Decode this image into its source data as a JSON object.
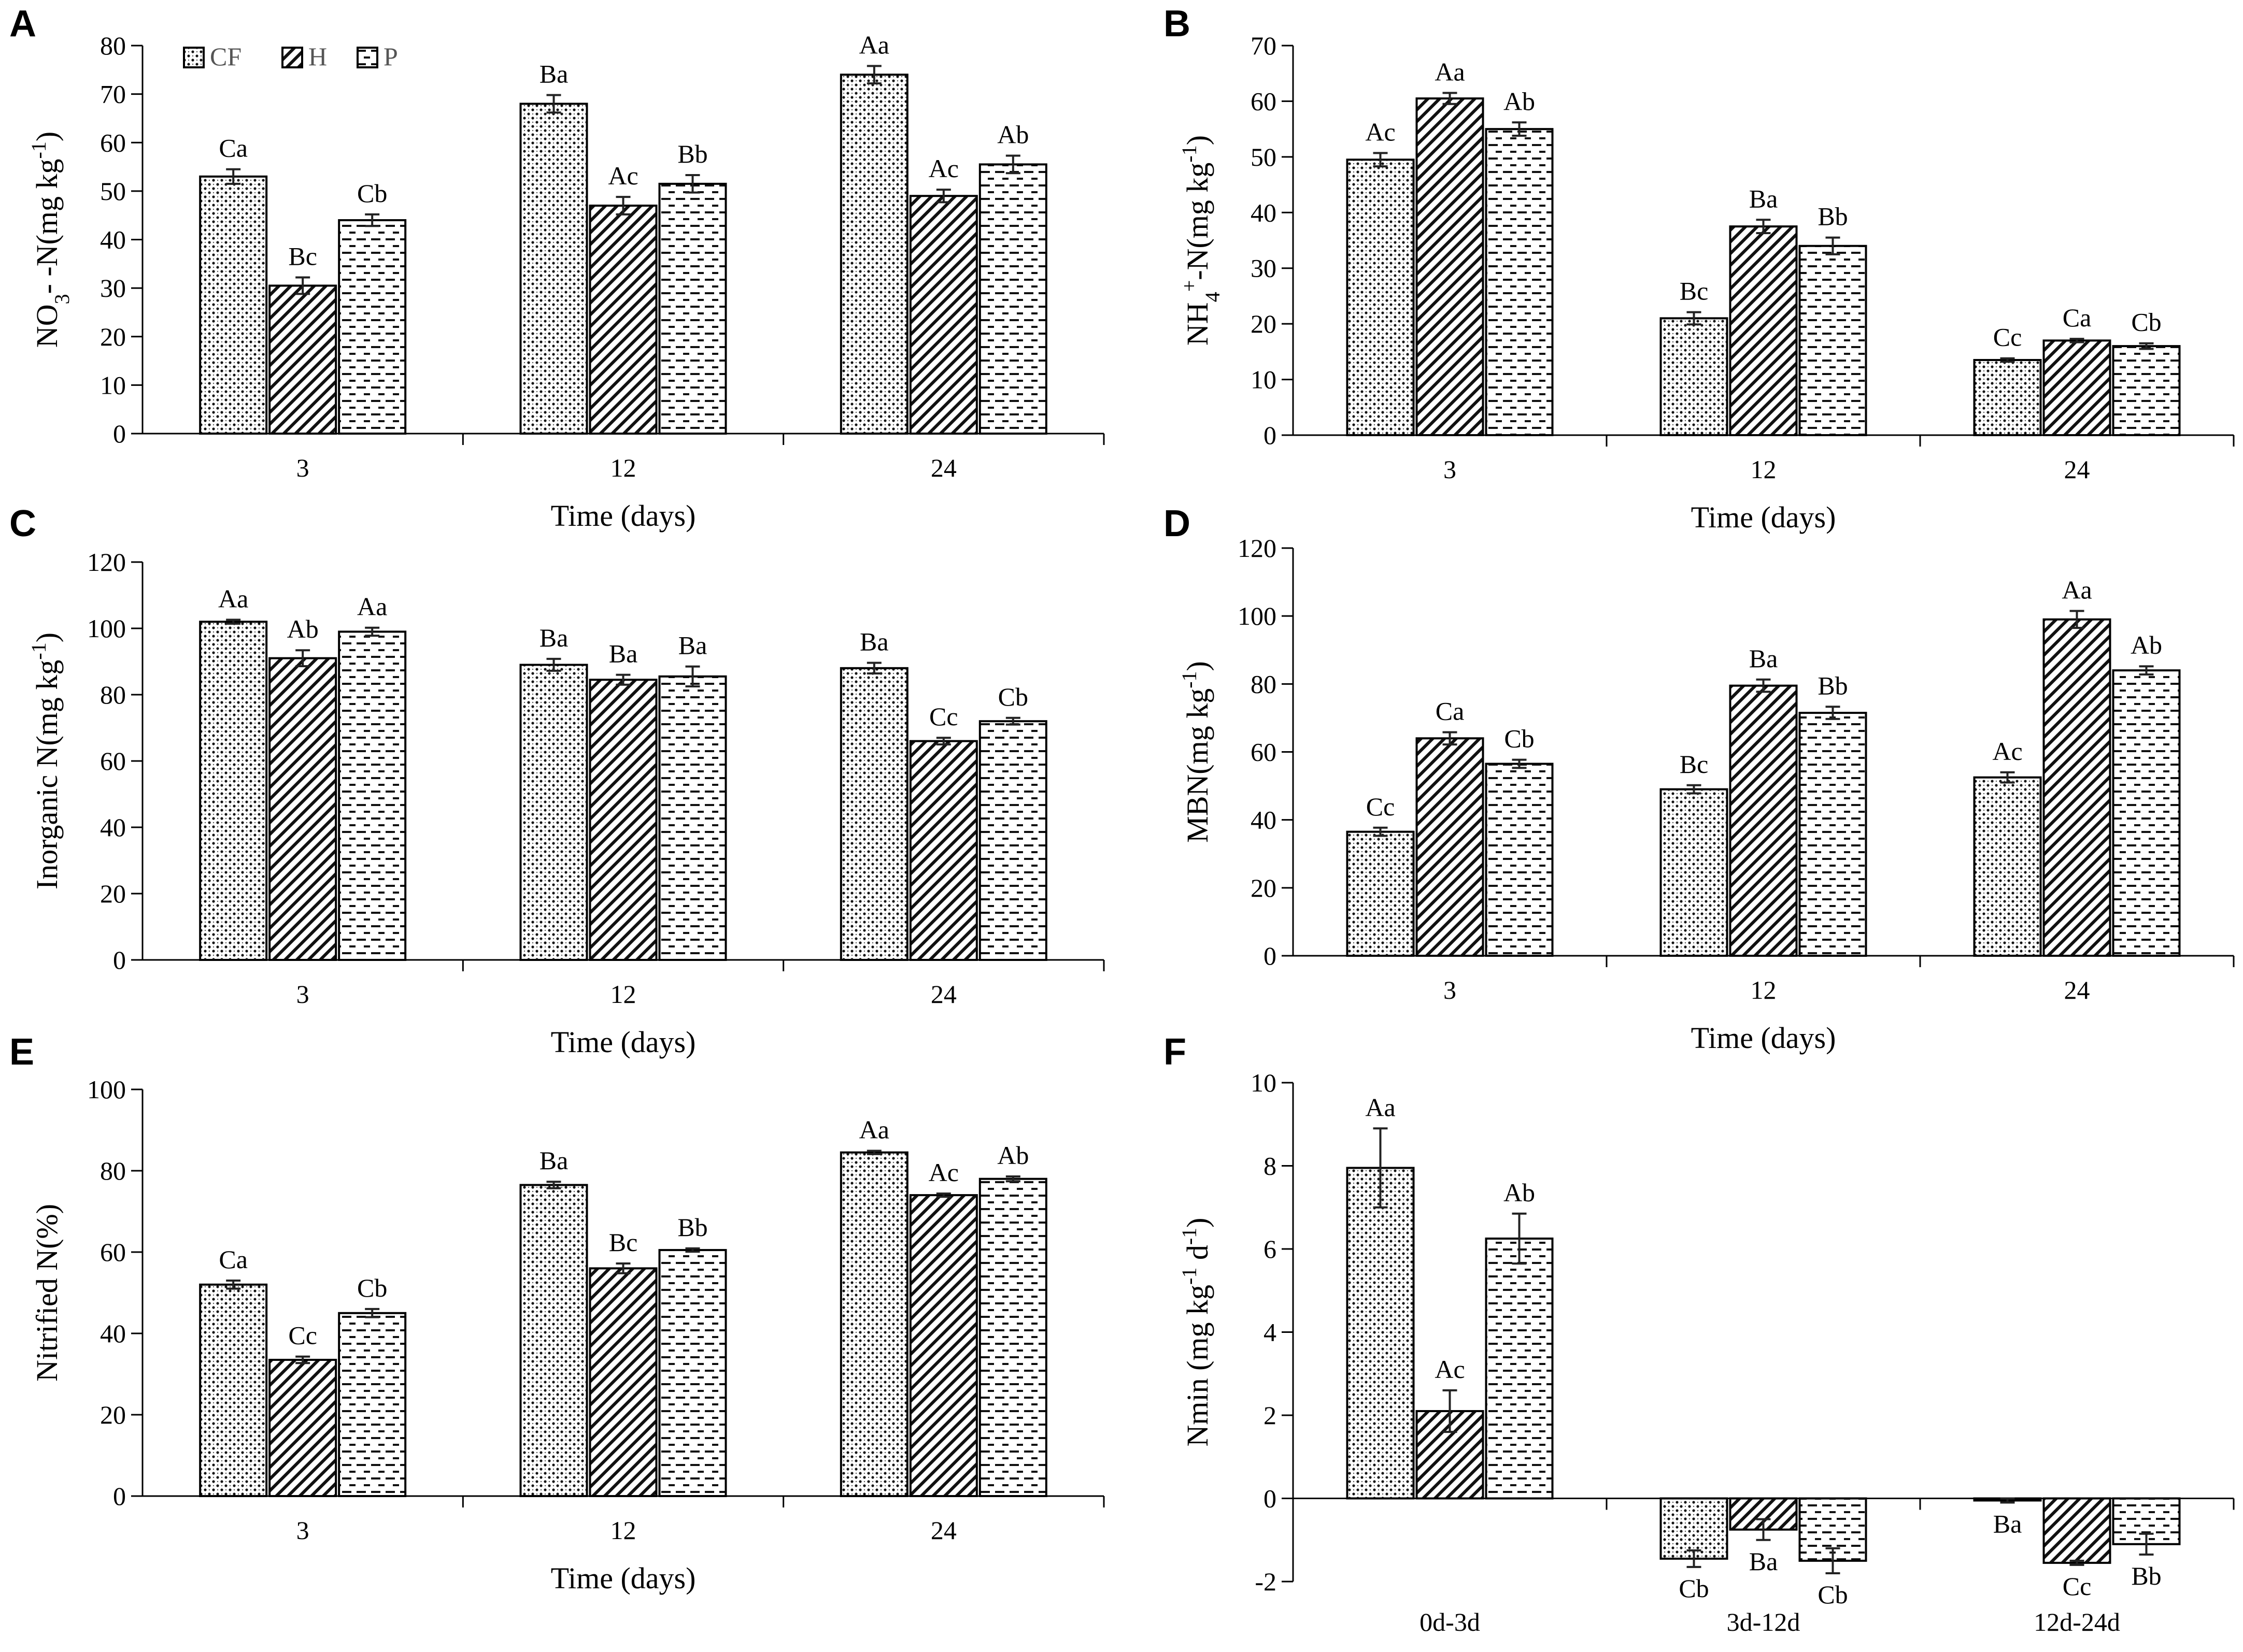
{
  "figure": {
    "legend": [
      {
        "key": "CF",
        "label": "CF"
      },
      {
        "key": "H",
        "label": "H"
      },
      {
        "key": "P",
        "label": "P"
      }
    ]
  },
  "chart_data": [
    {
      "panel": "A",
      "type": "bar",
      "xlabel": "Time (days)",
      "ylabel_parts": [
        [
          "NO",
          ""
        ],
        [
          "3",
          "sub"
        ],
        [
          "- -N(mg kg",
          ""
        ],
        [
          "-1",
          "sup"
        ],
        [
          ")",
          ""
        ]
      ],
      "ylim": [
        0,
        80
      ],
      "yticks": [
        "0",
        "10",
        "20",
        "30",
        "40",
        "50",
        "60",
        "70",
        "80"
      ],
      "categories": [
        "3",
        "12",
        "24"
      ],
      "series": [
        {
          "name": "CF",
          "values": [
            53,
            68,
            74
          ],
          "errors": [
            1.5,
            1.8,
            1.8
          ],
          "labels": [
            "Ca",
            "Ba",
            "Aa"
          ]
        },
        {
          "name": "H",
          "values": [
            30.5,
            47,
            49
          ],
          "errors": [
            1.7,
            1.8,
            1.3
          ],
          "labels": [
            "Bc",
            "Ac",
            "Ac"
          ]
        },
        {
          "name": "P",
          "values": [
            44,
            51.5,
            55.5
          ],
          "errors": [
            1.2,
            1.8,
            1.8
          ],
          "labels": [
            "Cb",
            "Bb",
            "Ab"
          ]
        }
      ]
    },
    {
      "panel": "B",
      "type": "bar",
      "xlabel": "Time (days)",
      "ylabel_parts": [
        [
          "NH",
          ""
        ],
        [
          "4",
          "sub"
        ],
        [
          "+",
          "sup"
        ],
        [
          "-N(mg kg",
          ""
        ],
        [
          "-1",
          "sup"
        ],
        [
          ")",
          ""
        ]
      ],
      "ylim": [
        0,
        70
      ],
      "yticks": [
        "0",
        "10",
        "20",
        "30",
        "40",
        "50",
        "60",
        "70"
      ],
      "categories": [
        "3",
        "12",
        "24"
      ],
      "series": [
        {
          "name": "CF",
          "values": [
            49.5,
            21,
            13.5
          ],
          "errors": [
            1.2,
            1.1,
            0.3
          ],
          "labels": [
            "Ac",
            "Bc",
            "Cc"
          ]
        },
        {
          "name": "H",
          "values": [
            60.5,
            37.5,
            17
          ],
          "errors": [
            1.0,
            1.2,
            0.3
          ],
          "labels": [
            "Aa",
            "Ba",
            "Ca"
          ]
        },
        {
          "name": "P",
          "values": [
            55,
            34,
            16
          ],
          "errors": [
            1.2,
            1.5,
            0.5
          ],
          "labels": [
            "Ab",
            "Bb",
            "Cb"
          ]
        }
      ]
    },
    {
      "panel": "C",
      "type": "bar",
      "xlabel": "Time (days)",
      "ylabel_parts": [
        [
          "Inorganic N(mg kg",
          ""
        ],
        [
          "-1",
          "sup"
        ],
        [
          ")",
          ""
        ]
      ],
      "ylim": [
        0,
        120
      ],
      "yticks": [
        "0",
        "20",
        "40",
        "60",
        "80",
        "100",
        "120"
      ],
      "categories": [
        "3",
        "12",
        "24"
      ],
      "series": [
        {
          "name": "CF",
          "values": [
            102,
            89,
            88
          ],
          "errors": [
            0.6,
            1.8,
            1.6
          ],
          "labels": [
            "Aa",
            "Ba",
            "Ba"
          ]
        },
        {
          "name": "H",
          "values": [
            91,
            84.5,
            66
          ],
          "errors": [
            2.4,
            1.5,
            1.0
          ],
          "labels": [
            "Ab",
            "Ba",
            "Cc"
          ]
        },
        {
          "name": "P",
          "values": [
            99,
            85.5,
            72
          ],
          "errors": [
            1.2,
            3.0,
            1.0
          ],
          "labels": [
            "Aa",
            "Ba",
            "Cb"
          ]
        }
      ]
    },
    {
      "panel": "D",
      "type": "bar",
      "xlabel": "Time (days)",
      "ylabel_parts": [
        [
          "MBN(mg kg",
          ""
        ],
        [
          "-1",
          "sup"
        ],
        [
          ")",
          ""
        ]
      ],
      "ylim": [
        0,
        120
      ],
      "yticks": [
        "0",
        "20",
        "40",
        "60",
        "80",
        "100",
        "120"
      ],
      "categories": [
        "3",
        "12",
        "24"
      ],
      "series": [
        {
          "name": "CF",
          "values": [
            36.5,
            49,
            52.5
          ],
          "errors": [
            1.2,
            1.2,
            1.5
          ],
          "labels": [
            "Cc",
            "Bc",
            "Ac"
          ]
        },
        {
          "name": "H",
          "values": [
            64,
            79.5,
            99
          ],
          "errors": [
            1.8,
            1.8,
            2.5
          ],
          "labels": [
            "Ca",
            "Ba",
            "Aa"
          ]
        },
        {
          "name": "P",
          "values": [
            56.5,
            71.5,
            84
          ],
          "errors": [
            1.2,
            1.8,
            1.2
          ],
          "labels": [
            "Cb",
            "Bb",
            "Ab"
          ]
        }
      ]
    },
    {
      "panel": "E",
      "type": "bar",
      "xlabel": "Time (days)",
      "ylabel_parts": [
        [
          "Nitrified N(%)",
          ""
        ]
      ],
      "ylim": [
        0,
        100
      ],
      "yticks": [
        "0",
        "20",
        "40",
        "60",
        "80",
        "100"
      ],
      "categories": [
        "3",
        "12",
        "24"
      ],
      "series": [
        {
          "name": "CF",
          "values": [
            52,
            76.5,
            84.5
          ],
          "errors": [
            1.0,
            0.8,
            0.4
          ],
          "labels": [
            "Ca",
            "Ba",
            "Aa"
          ]
        },
        {
          "name": "H",
          "values": [
            33.5,
            56,
            74
          ],
          "errors": [
            0.8,
            1.2,
            0.4
          ],
          "labels": [
            "Cc",
            "Bc",
            "Ac"
          ]
        },
        {
          "name": "P",
          "values": [
            45,
            60.5,
            78
          ],
          "errors": [
            1.0,
            0.4,
            0.6
          ],
          "labels": [
            "Cb",
            "Bb",
            "Ab"
          ]
        }
      ]
    },
    {
      "panel": "F",
      "type": "bar",
      "xlabel": "",
      "ylabel_parts": [
        [
          "Nmin (mg kg",
          ""
        ],
        [
          "-1",
          "sup"
        ],
        [
          " d",
          ""
        ],
        [
          "-1",
          "sup"
        ],
        [
          ")",
          ""
        ]
      ],
      "ylim": [
        -2,
        10
      ],
      "yticks": [
        "-2",
        "0",
        "2",
        "4",
        "6",
        "8",
        "10"
      ],
      "categories": [
        "0d-3d",
        "3d-12d",
        "12d-24d"
      ],
      "series": [
        {
          "name": "CF",
          "values": [
            7.95,
            -1.45,
            -0.05
          ],
          "errors": [
            0.95,
            0.2,
            0.05
          ],
          "labels": [
            "Aa",
            "Cb",
            "Ba"
          ]
        },
        {
          "name": "H",
          "values": [
            2.1,
            -0.75,
            -1.55
          ],
          "errors": [
            0.5,
            0.25,
            0.05
          ],
          "labels": [
            "Ac",
            "Ba",
            "Cc"
          ]
        },
        {
          "name": "P",
          "values": [
            6.25,
            -1.5,
            -1.1
          ],
          "errors": [
            0.6,
            0.3,
            0.25
          ],
          "labels": [
            "Ab",
            "Cb",
            "Bb"
          ]
        }
      ]
    }
  ]
}
